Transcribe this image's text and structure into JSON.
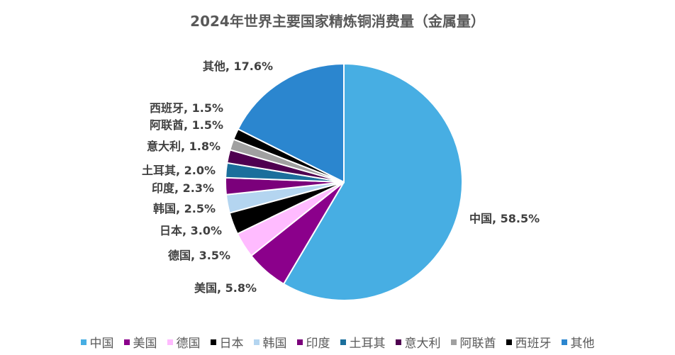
{
  "chart_data": {
    "type": "pie",
    "title": "2024年世界主要国家精炼铜消费量（金属量）",
    "start_angle": "top, clockwise",
    "slices": [
      {
        "label": "中国",
        "value": 58.5,
        "value_label": "58.5%",
        "color": "#47AEE3"
      },
      {
        "label": "美国",
        "value": 5.8,
        "value_label": "5.8%",
        "color": "#8B008B"
      },
      {
        "label": "德国",
        "value": 3.5,
        "value_label": "3.5%",
        "color": "#FFBBFF"
      },
      {
        "label": "日本",
        "value": 3.0,
        "value_label": "3.0%",
        "color": "#000000"
      },
      {
        "label": "韩国",
        "value": 2.5,
        "value_label": "2.5%",
        "color": "#B4D5F0"
      },
      {
        "label": "印度",
        "value": 2.3,
        "value_label": "2.3%",
        "color": "#7B007B"
      },
      {
        "label": "土耳其",
        "value": 2.0,
        "value_label": "2.0%",
        "color": "#1B6F9C"
      },
      {
        "label": "意大利",
        "value": 1.8,
        "value_label": "1.8%",
        "color": "#4F0050"
      },
      {
        "label": "阿联酋",
        "value": 1.5,
        "value_label": "1.5%",
        "color": "#A0A0A0"
      },
      {
        "label": "西班牙",
        "value": 1.5,
        "value_label": "1.5%",
        "color": "#000000"
      },
      {
        "label": "其他",
        "value": 17.6,
        "value_label": "17.6%",
        "color": "#2B86CF"
      }
    ],
    "legend_position": "bottom"
  }
}
